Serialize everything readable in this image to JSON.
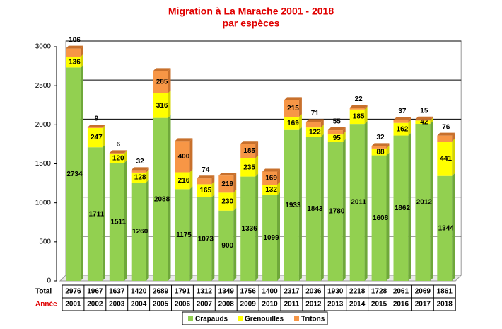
{
  "chart_data": {
    "type": "stacked-bar",
    "title": "Migration à La Marache 2001 - 2018",
    "subtitle": "par espèces",
    "categories": [
      "2001",
      "2002",
      "2003",
      "2004",
      "2005",
      "2006",
      "2007",
      "2008",
      "2009",
      "2010",
      "2011",
      "2012",
      "2013",
      "2014",
      "2015",
      "2016",
      "2017",
      "2018"
    ],
    "series": [
      {
        "name": "Crapauds",
        "color": "#92d050",
        "values": [
          2734,
          1711,
          1511,
          1260,
          2088,
          1175,
          1073,
          900,
          1336,
          1099,
          1933,
          1843,
          1780,
          2011,
          1608,
          1862,
          2012,
          1344
        ]
      },
      {
        "name": "Grenouilles",
        "color": "#ffff00",
        "values": [
          136,
          247,
          120,
          128,
          316,
          216,
          165,
          230,
          235,
          132,
          169,
          122,
          95,
          185,
          88,
          162,
          42,
          441
        ]
      },
      {
        "name": "Tritons",
        "color": "#f79646",
        "values": [
          106,
          9,
          6,
          32,
          285,
          400,
          74,
          219,
          185,
          169,
          215,
          71,
          55,
          22,
          32,
          37,
          15,
          76
        ]
      }
    ],
    "totals": [
      2976,
      1967,
      1637,
      1420,
      2689,
      1791,
      1312,
      1349,
      1756,
      1400,
      2317,
      2036,
      1930,
      2218,
      1728,
      2061,
      2069,
      1861
    ],
    "row_labels": [
      "Total",
      "Année"
    ],
    "ylim": [
      0,
      3000
    ],
    "yticks": [
      0,
      500,
      1000,
      1500,
      2000,
      2500,
      3000
    ],
    "grid": true
  }
}
